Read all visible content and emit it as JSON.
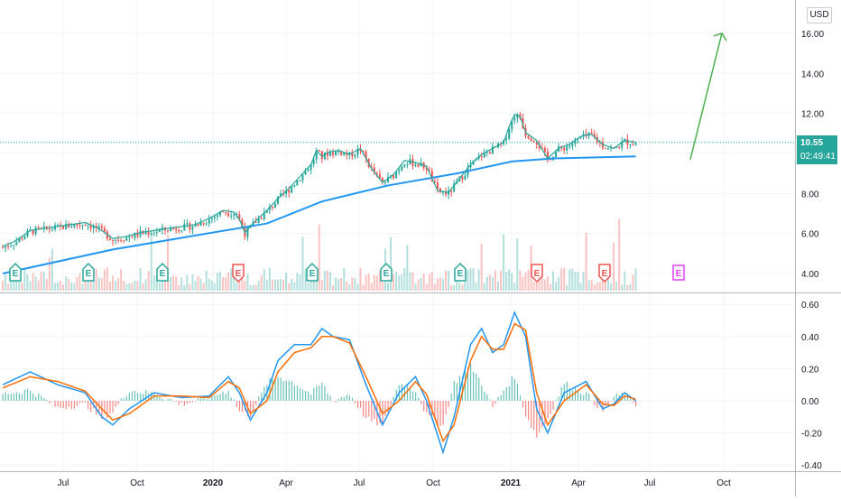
{
  "currency": "USD",
  "price_label": {
    "value": "10.55",
    "countdown": "02:49:41"
  },
  "colors": {
    "up": "#26a69a",
    "down": "#ef5350",
    "ma": "#2196f3",
    "macd_line": "#2196f3",
    "signal_line": "#ff6d00",
    "arrow": "#4caf50",
    "price_tag": "#26a69a",
    "earnings_past": "#26a69a",
    "earnings_miss": "#ef5350",
    "earnings_future": "#e040fb",
    "grid": "#f0f3fa",
    "axis_text": "#131722"
  },
  "earnings_markers": [
    {
      "label": "E",
      "status": "beat"
    },
    {
      "label": "E",
      "status": "beat"
    },
    {
      "label": "E",
      "status": "beat"
    },
    {
      "label": "E",
      "status": "miss"
    },
    {
      "label": "E",
      "status": "beat"
    },
    {
      "label": "E",
      "status": "beat"
    },
    {
      "label": "E",
      "status": "beat"
    },
    {
      "label": "E",
      "status": "miss"
    },
    {
      "label": "E",
      "status": "miss"
    },
    {
      "label": "E",
      "status": "upcoming"
    }
  ],
  "chart_data": [
    {
      "type": "candlestick",
      "price_axis": {
        "ticks": [
          "16.00",
          "14.00",
          "12.00",
          "10.00",
          "8.00",
          "6.00",
          "4.00"
        ],
        "range": [
          3.2,
          17.0
        ]
      },
      "time_axis": {
        "ticks": [
          "Jul",
          "Oct",
          "2020",
          "Apr",
          "Jul",
          "Oct",
          "2021",
          "Apr",
          "Jul",
          "Oct"
        ],
        "bold": [
          "2020",
          "2021"
        ]
      },
      "series": [
        {
          "name": "",
          "kind": "price",
          "points": [
            [
              0,
              5.3
            ],
            [
              5,
              5.6
            ],
            [
              10,
              6.1
            ],
            [
              15,
              6.2
            ],
            [
              20,
              6.3
            ],
            [
              25,
              6.4
            ],
            [
              30,
              6.5
            ],
            [
              35,
              6.2
            ],
            [
              40,
              5.7
            ],
            [
              45,
              5.8
            ],
            [
              50,
              6.0
            ],
            [
              55,
              6.1
            ],
            [
              60,
              6.2
            ],
            [
              65,
              6.3
            ],
            [
              70,
              6.4
            ],
            [
              75,
              6.7
            ],
            [
              80,
              7.1
            ],
            [
              85,
              7.0
            ],
            [
              88,
              6.0
            ],
            [
              92,
              6.6
            ],
            [
              96,
              7.1
            ],
            [
              100,
              7.7
            ],
            [
              104,
              8.2
            ],
            [
              108,
              8.8
            ],
            [
              112,
              9.4
            ],
            [
              114,
              10.1
            ],
            [
              116,
              9.8
            ],
            [
              118,
              10.0
            ],
            [
              122,
              10.1
            ],
            [
              126,
              9.9
            ],
            [
              130,
              10.2
            ],
            [
              134,
              9.2
            ],
            [
              138,
              8.5
            ],
            [
              142,
              8.9
            ],
            [
              146,
              9.6
            ],
            [
              150,
              9.5
            ],
            [
              154,
              9.3
            ],
            [
              158,
              8.1
            ],
            [
              162,
              8.0
            ],
            [
              166,
              8.7
            ],
            [
              170,
              9.4
            ],
            [
              174,
              9.9
            ],
            [
              178,
              10.2
            ],
            [
              182,
              10.5
            ],
            [
              184,
              11.3
            ],
            [
              186,
              11.9
            ],
            [
              188,
              11.8
            ],
            [
              190,
              11.0
            ],
            [
              194,
              10.6
            ],
            [
              198,
              9.7
            ],
            [
              202,
              10.2
            ],
            [
              206,
              10.4
            ],
            [
              210,
              10.8
            ],
            [
              214,
              10.9
            ],
            [
              218,
              10.4
            ],
            [
              222,
              10.2
            ],
            [
              226,
              10.6
            ],
            [
              230,
              10.5
            ]
          ]
        },
        {
          "name": "",
          "kind": "moving_average",
          "points": [
            [
              0,
              4.0
            ],
            [
              40,
              5.2
            ],
            [
              70,
              5.9
            ],
            [
              96,
              6.5
            ],
            [
              116,
              7.6
            ],
            [
              140,
              8.4
            ],
            [
              165,
              9.0
            ],
            [
              185,
              9.6
            ],
            [
              200,
              9.75
            ],
            [
              230,
              9.85
            ]
          ]
        }
      ],
      "volume": {
        "relative_bars": 230
      },
      "last_price": 10.55,
      "projection_arrow": {
        "from": 9.7,
        "to": 16.0
      }
    },
    {
      "type": "histogram_lines",
      "y_axis": {
        "ticks": [
          "0.60",
          "0.40",
          "0.20",
          "0.00",
          "-0.20",
          "-0.40"
        ],
        "range": [
          -0.45,
          0.62
        ]
      },
      "series": [
        {
          "name": "",
          "kind": "macd",
          "points": [
            [
              0,
              0.1
            ],
            [
              10,
              0.18
            ],
            [
              20,
              0.1
            ],
            [
              30,
              0.05
            ],
            [
              36,
              -0.1
            ],
            [
              40,
              -0.15
            ],
            [
              46,
              -0.05
            ],
            [
              55,
              0.05
            ],
            [
              65,
              0.02
            ],
            [
              75,
              0.03
            ],
            [
              82,
              0.15
            ],
            [
              86,
              0.05
            ],
            [
              90,
              -0.12
            ],
            [
              96,
              0.05
            ],
            [
              100,
              0.25
            ],
            [
              106,
              0.35
            ],
            [
              112,
              0.35
            ],
            [
              116,
              0.45
            ],
            [
              120,
              0.4
            ],
            [
              126,
              0.38
            ],
            [
              132,
              0.1
            ],
            [
              138,
              -0.15
            ],
            [
              144,
              0.05
            ],
            [
              150,
              0.15
            ],
            [
              154,
              0.0
            ],
            [
              160,
              -0.32
            ],
            [
              164,
              -0.1
            ],
            [
              170,
              0.35
            ],
            [
              174,
              0.45
            ],
            [
              178,
              0.3
            ],
            [
              182,
              0.35
            ],
            [
              186,
              0.55
            ],
            [
              190,
              0.4
            ],
            [
              194,
              -0.05
            ],
            [
              198,
              -0.2
            ],
            [
              204,
              0.05
            ],
            [
              212,
              0.12
            ],
            [
              218,
              -0.05
            ],
            [
              222,
              -0.02
            ],
            [
              226,
              0.05
            ],
            [
              230,
              0.0
            ]
          ]
        },
        {
          "name": "",
          "kind": "signal",
          "points": [
            [
              0,
              0.08
            ],
            [
              10,
              0.15
            ],
            [
              20,
              0.12
            ],
            [
              30,
              0.06
            ],
            [
              36,
              -0.05
            ],
            [
              40,
              -0.12
            ],
            [
              46,
              -0.08
            ],
            [
              55,
              0.03
            ],
            [
              65,
              0.03
            ],
            [
              75,
              0.02
            ],
            [
              82,
              0.12
            ],
            [
              86,
              0.08
            ],
            [
              90,
              -0.08
            ],
            [
              96,
              0.0
            ],
            [
              100,
              0.18
            ],
            [
              106,
              0.3
            ],
            [
              112,
              0.33
            ],
            [
              116,
              0.4
            ],
            [
              120,
              0.4
            ],
            [
              126,
              0.36
            ],
            [
              132,
              0.15
            ],
            [
              138,
              -0.08
            ],
            [
              144,
              0.0
            ],
            [
              150,
              0.12
            ],
            [
              154,
              0.04
            ],
            [
              160,
              -0.25
            ],
            [
              164,
              -0.15
            ],
            [
              170,
              0.25
            ],
            [
              174,
              0.4
            ],
            [
              178,
              0.32
            ],
            [
              182,
              0.32
            ],
            [
              186,
              0.48
            ],
            [
              190,
              0.44
            ],
            [
              194,
              0.05
            ],
            [
              198,
              -0.15
            ],
            [
              204,
              0.0
            ],
            [
              212,
              0.1
            ],
            [
              218,
              -0.02
            ],
            [
              222,
              -0.03
            ],
            [
              226,
              0.03
            ],
            [
              230,
              0.01
            ]
          ]
        }
      ]
    }
  ]
}
